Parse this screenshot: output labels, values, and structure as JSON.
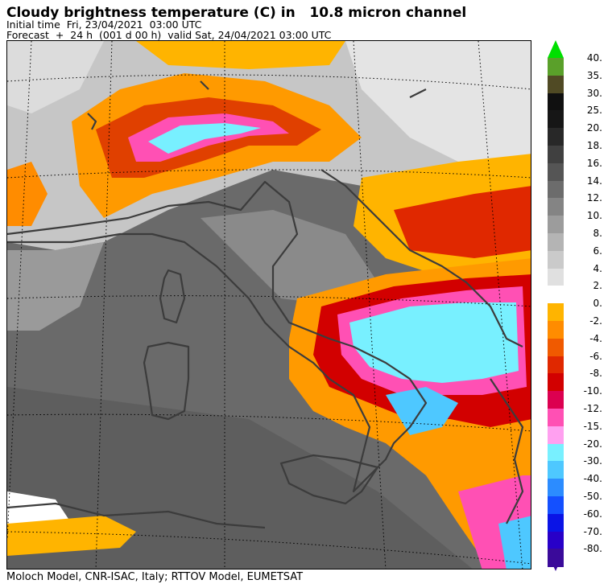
{
  "header": {
    "title": "Cloudy brightness temperature (C) in   10.8 micron channel",
    "initial_time": "Initial time  Fri, 23/04/2021  03:00 UTC",
    "forecast": "Forecast  +  24 h  (001 d 00 h)  valid Sat, 24/04/2021 03:00 UTC"
  },
  "footer": {
    "credits": "Moloch Model, CNR-ISAC, Italy; RTTOV Model, EUMETSAT"
  },
  "map": {
    "region": "Italy and central Mediterranean",
    "background_color": "#6a6a6a",
    "coastline_color": "#3c3c3c",
    "graticule_style": "dotted"
  },
  "colorbar": {
    "upper_arrow_color": "#00e000",
    "lower_arrow_color": "#3a0a9a",
    "segments": [
      {
        "label": "40.",
        "color": "#5aa02a"
      },
      {
        "label": "35.",
        "color": "#504a24"
      },
      {
        "label": "30.",
        "color": "#101010"
      },
      {
        "label": "25.",
        "color": "#161616"
      },
      {
        "label": "20.",
        "color": "#282828"
      },
      {
        "label": "18.",
        "color": "#404040"
      },
      {
        "label": "16.",
        "color": "#555555"
      },
      {
        "label": "14.",
        "color": "#6c6c6c"
      },
      {
        "label": "12.",
        "color": "#848484"
      },
      {
        "label": "10.",
        "color": "#9c9c9c"
      },
      {
        "label": "8.",
        "color": "#b4b4b4"
      },
      {
        "label": "6.",
        "color": "#cacaca"
      },
      {
        "label": "4.",
        "color": "#e0e0e0"
      },
      {
        "label": "2.",
        "color": "#ffffff"
      },
      {
        "label": "0.",
        "color": "#ffb400"
      },
      {
        "label": "-2.",
        "color": "#ff8c00"
      },
      {
        "label": "-4.",
        "color": "#f05a00"
      },
      {
        "label": "-6.",
        "color": "#e02800"
      },
      {
        "label": "-8.",
        "color": "#d20000"
      },
      {
        "label": "-10.",
        "color": "#dc0050"
      },
      {
        "label": "-12.",
        "color": "#ff50b4"
      },
      {
        "label": "-15.",
        "color": "#ffa0f0"
      },
      {
        "label": "-20.",
        "color": "#78f0ff"
      },
      {
        "label": "-30.",
        "color": "#4ec8ff"
      },
      {
        "label": "-40.",
        "color": "#2c8cff"
      },
      {
        "label": "-50.",
        "color": "#1450ff"
      },
      {
        "label": "-60.",
        "color": "#0a14e6"
      },
      {
        "label": "-70.",
        "color": "#2800c8"
      },
      {
        "label": "-80.",
        "color": "#3a0a9a"
      }
    ]
  }
}
